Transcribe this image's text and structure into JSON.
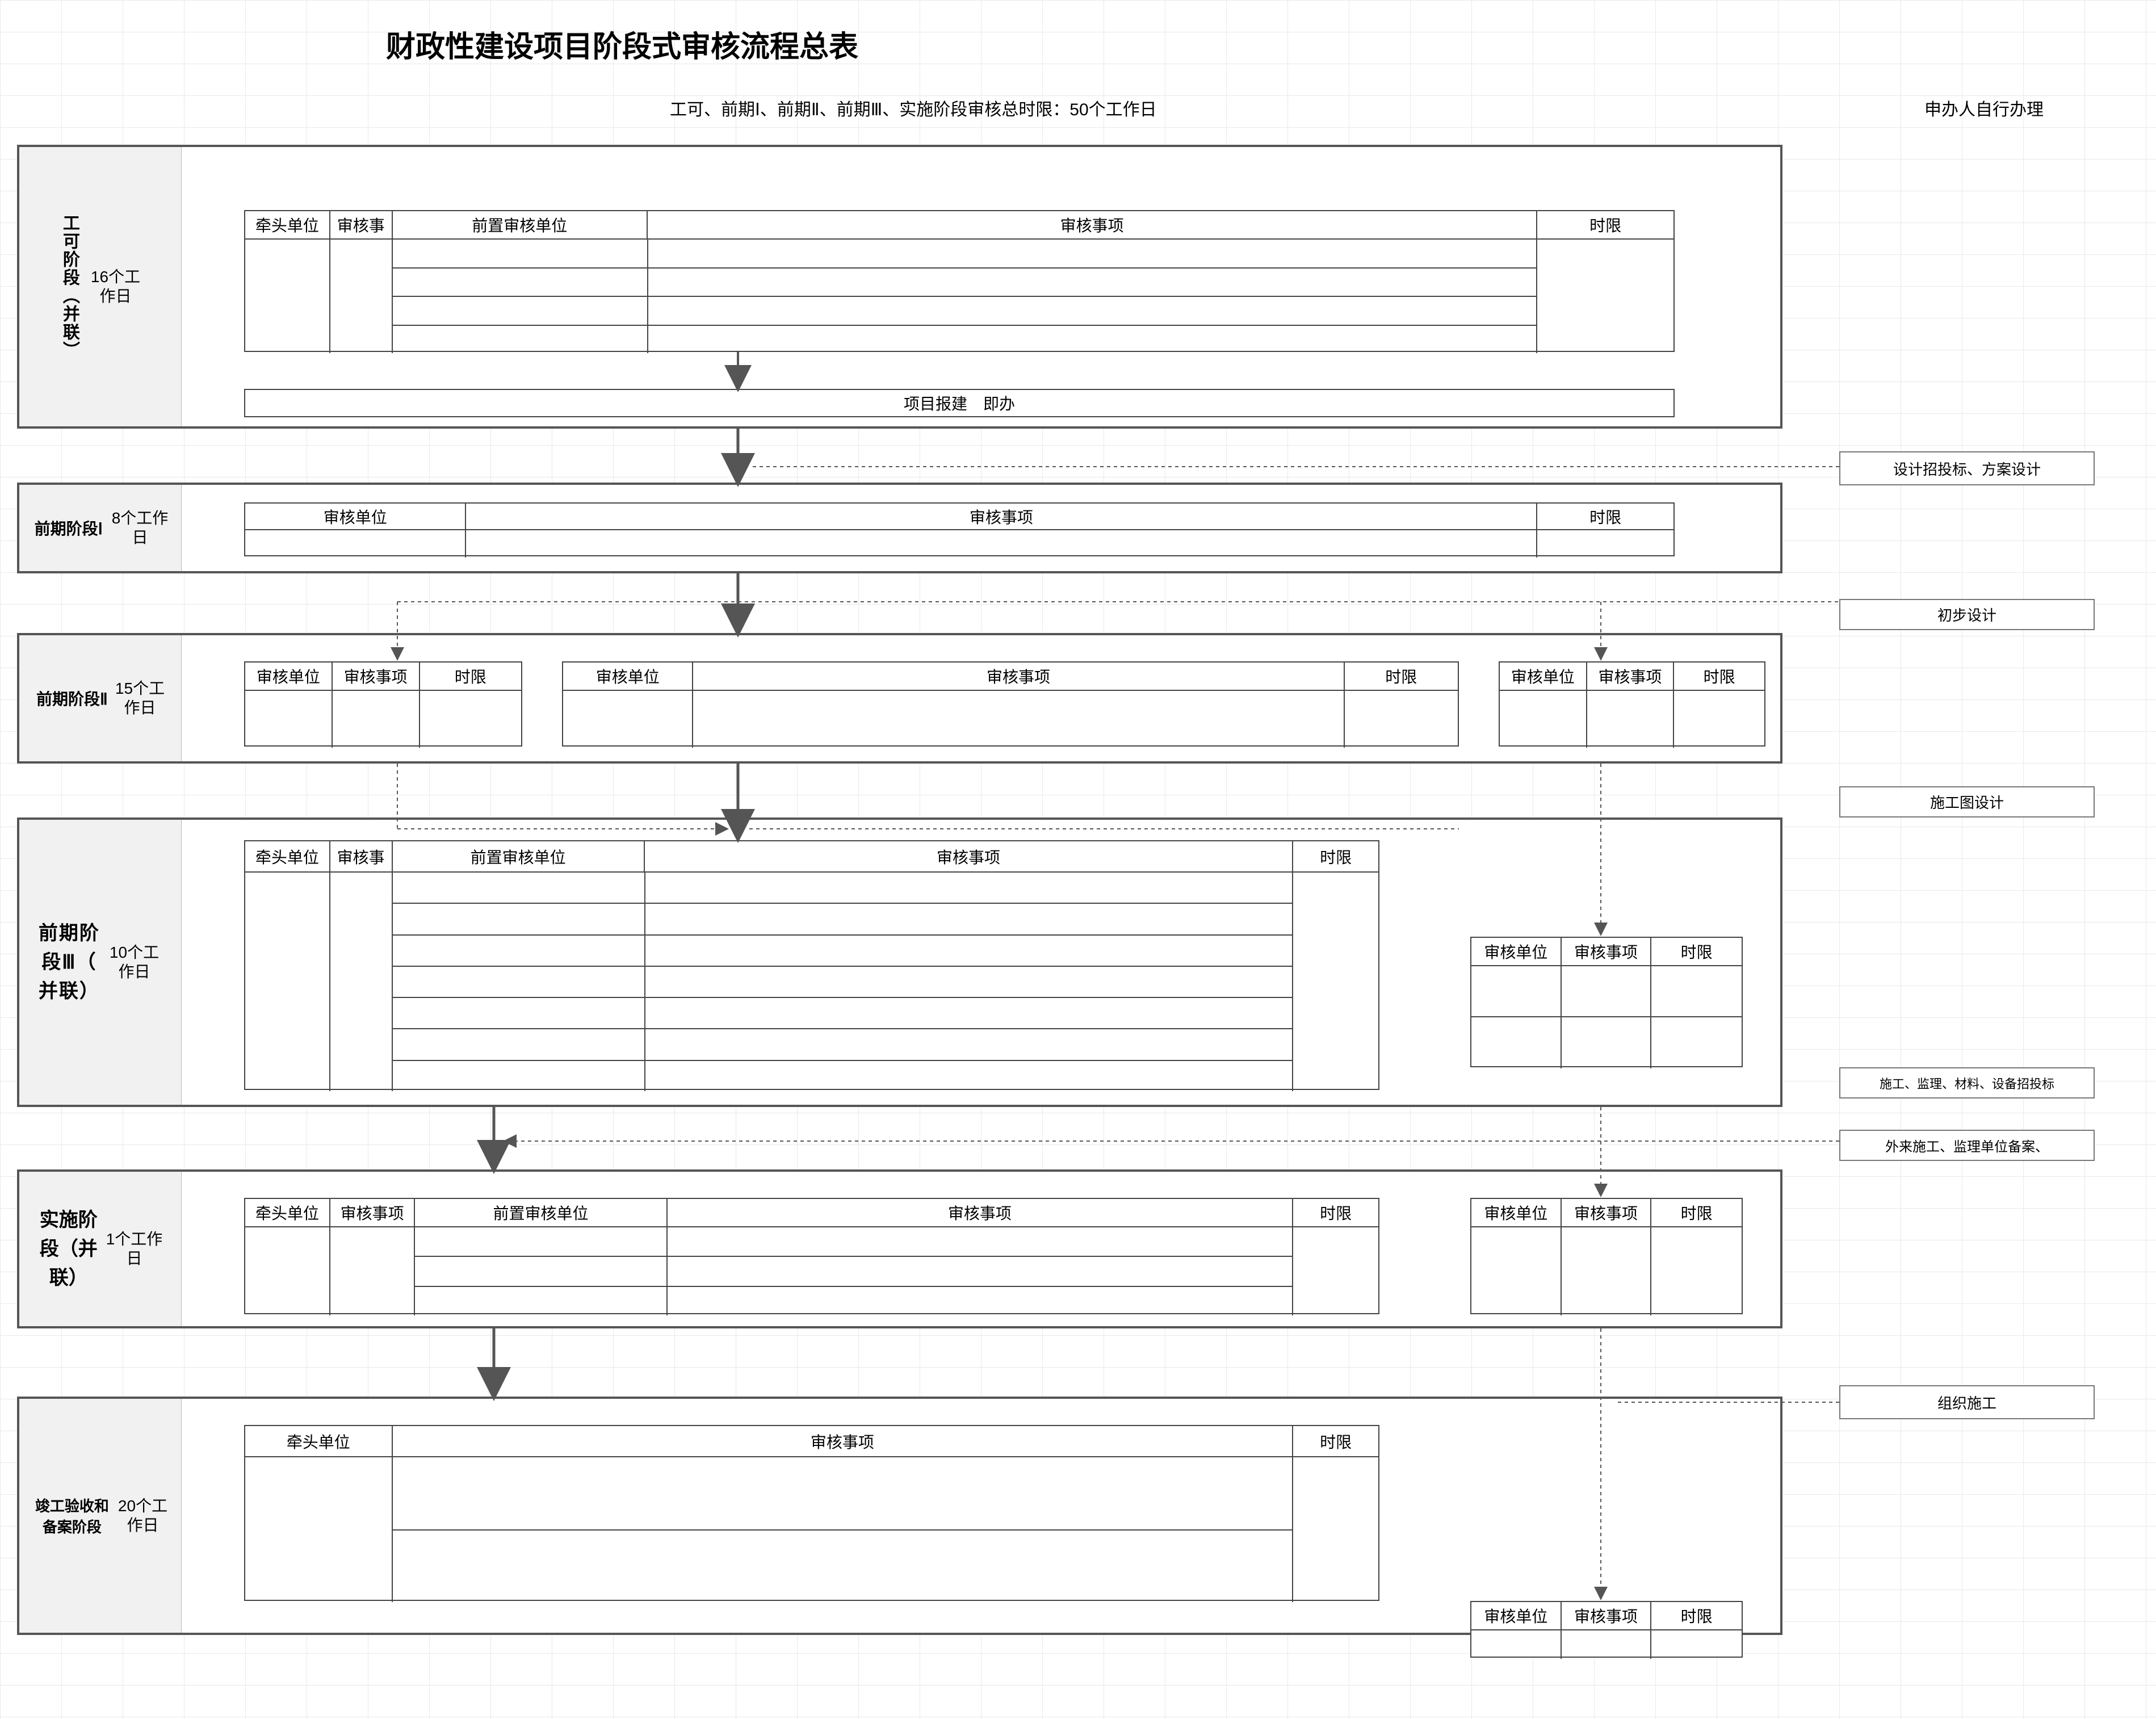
{
  "title": "财政性建设项目阶段式审核流程总表",
  "subtitle": "工可、前期Ⅰ、前期Ⅱ、前期Ⅲ、实施阶段审核总时限：50个工作日",
  "right_header": "申办人自行办理",
  "side_notes": {
    "s1": "设计招投标、方案设计",
    "s2": "初步设计",
    "s3": "施工图设计",
    "s4": "施工、监理、材料、设备招投标",
    "s5": "外来施工、监理单位备案、",
    "s6": "组织施工"
  },
  "common": {
    "lead_unit": "牵头单位",
    "review_item": "审核事",
    "review_item_full": "审核事项",
    "review_unit": "审核单位",
    "pre_review_unit": "前置审核单位",
    "time_limit": "时限"
  },
  "stage1": {
    "name": "工可阶\n段（\n并联）",
    "name_flat": "工可阶段（并联）",
    "days": "16个工\n作日",
    "project_report": "项目报建　即办"
  },
  "stage2": {
    "name": "前期阶段Ⅰ",
    "days": "8个工作\n日"
  },
  "stage3": {
    "name": "前期阶段Ⅱ",
    "days": "15个工\n作日"
  },
  "stage4": {
    "name": "前期阶\n段Ⅲ（\n并联）",
    "days": "10个工\n作日"
  },
  "stage5": {
    "name": "实施阶\n段（并\n联）",
    "days": "1个工作\n日"
  },
  "stage6": {
    "name": "竣工验收和备案阶段",
    "days": "20个工\n作日"
  }
}
